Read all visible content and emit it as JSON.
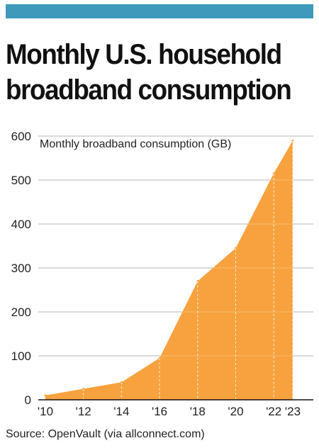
{
  "header": {
    "bar_color": "#3f99ba"
  },
  "title": {
    "line1": "Monthly U.S. household",
    "line2": "broadband consumption"
  },
  "source": "Source: OpenVault (via allconnect.com)",
  "chart_data": {
    "type": "area",
    "title": "Monthly broadband consumption (GB)",
    "xlabel": "",
    "ylabel": "",
    "x": [
      "'10",
      "'12",
      "'14",
      "'16",
      "'18",
      "'20",
      "'22",
      "'23"
    ],
    "x_numeric": [
      2010,
      2012,
      2014,
      2016,
      2018,
      2020,
      2022,
      2023
    ],
    "values": [
      10,
      25,
      40,
      95,
      270,
      345,
      515,
      590
    ],
    "ylim": [
      0,
      600
    ],
    "yticks": [
      0,
      100,
      200,
      300,
      400,
      500,
      600
    ],
    "grid": true,
    "fill_color": "#f7a23e"
  }
}
